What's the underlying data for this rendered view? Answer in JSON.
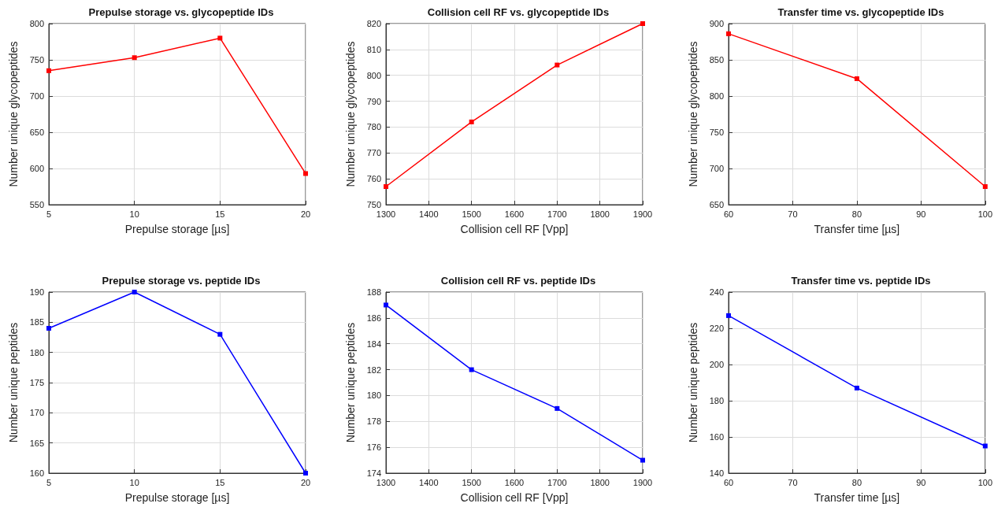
{
  "chart_data": [
    {
      "type": "line",
      "title": "Prepulse storage vs. glycopeptide IDs",
      "xlabel": "Prepulse storage [µs]",
      "ylabel": "Number unique glycopeptides",
      "x": [
        5,
        10,
        15,
        20
      ],
      "series": [
        {
          "color": "#ff0000",
          "values": [
            735,
            753,
            780,
            593
          ]
        }
      ],
      "xlim": [
        5,
        20
      ],
      "xticks": [
        5,
        10,
        15,
        20
      ],
      "ylim": [
        550,
        800
      ],
      "yticks": [
        550,
        600,
        650,
        700,
        750,
        800
      ],
      "grid": true,
      "marker": "square",
      "line_style": "solid"
    },
    {
      "type": "line",
      "title": "Collision cell RF vs. glycopeptide IDs",
      "xlabel": "Collision cell RF [Vpp]",
      "ylabel": "Number unique glycopeptides",
      "x": [
        1300,
        1500,
        1700,
        1900
      ],
      "series": [
        {
          "color": "#ff0000",
          "values": [
            757,
            782,
            804,
            820
          ]
        }
      ],
      "xlim": [
        1300,
        1900
      ],
      "xticks": [
        1300,
        1400,
        1500,
        1600,
        1700,
        1800,
        1900
      ],
      "ylim": [
        750,
        820
      ],
      "yticks": [
        750,
        760,
        770,
        780,
        790,
        800,
        810,
        820
      ],
      "grid": true,
      "marker": "square",
      "line_style": "solid"
    },
    {
      "type": "line",
      "title": "Transfer time vs. glycopeptide IDs",
      "xlabel": "Transfer time [µs]",
      "ylabel": "Number unique glycopeptides",
      "x": [
        60,
        80,
        100
      ],
      "series": [
        {
          "color": "#ff0000",
          "values": [
            886,
            824,
            675
          ]
        }
      ],
      "xlim": [
        60,
        100
      ],
      "xticks": [
        60,
        70,
        80,
        90,
        100
      ],
      "ylim": [
        650,
        900
      ],
      "yticks": [
        650,
        700,
        750,
        800,
        850,
        900
      ],
      "grid": true,
      "marker": "square",
      "line_style": "solid"
    },
    {
      "type": "line",
      "title": "Prepulse storage vs. peptide IDs",
      "xlabel": "Prepulse storage [µs]",
      "ylabel": "Number unique peptides",
      "x": [
        5,
        10,
        15,
        20
      ],
      "series": [
        {
          "color": "#0000ff",
          "values": [
            184,
            190,
            183,
            160
          ]
        }
      ],
      "xlim": [
        5,
        20
      ],
      "xticks": [
        5,
        10,
        15,
        20
      ],
      "ylim": [
        160,
        190
      ],
      "yticks": [
        160,
        165,
        170,
        175,
        180,
        185,
        190
      ],
      "grid": true,
      "marker": "square",
      "line_style": "solid"
    },
    {
      "type": "line",
      "title": "Collision cell RF vs. peptide IDs",
      "xlabel": "Collision cell RF [Vpp]",
      "ylabel": "Number unique peptides",
      "x": [
        1300,
        1500,
        1700,
        1900
      ],
      "series": [
        {
          "color": "#0000ff",
          "values": [
            187,
            182,
            179,
            175
          ]
        }
      ],
      "xlim": [
        1300,
        1900
      ],
      "xticks": [
        1300,
        1400,
        1500,
        1600,
        1700,
        1800,
        1900
      ],
      "ylim": [
        174,
        188
      ],
      "yticks": [
        174,
        176,
        178,
        180,
        182,
        184,
        186,
        188
      ],
      "grid": true,
      "marker": "square",
      "line_style": "solid"
    },
    {
      "type": "line",
      "title": "Transfer time vs. peptide IDs",
      "xlabel": "Transfer time [µs]",
      "ylabel": "Number unique peptides",
      "x": [
        60,
        80,
        100
      ],
      "series": [
        {
          "color": "#0000ff",
          "values": [
            227,
            187,
            155
          ]
        }
      ],
      "xlim": [
        60,
        100
      ],
      "xticks": [
        60,
        70,
        80,
        90,
        100
      ],
      "ylim": [
        140,
        240
      ],
      "yticks": [
        140,
        160,
        180,
        200,
        220,
        240
      ],
      "grid": true,
      "marker": "square",
      "line_style": "solid"
    }
  ]
}
